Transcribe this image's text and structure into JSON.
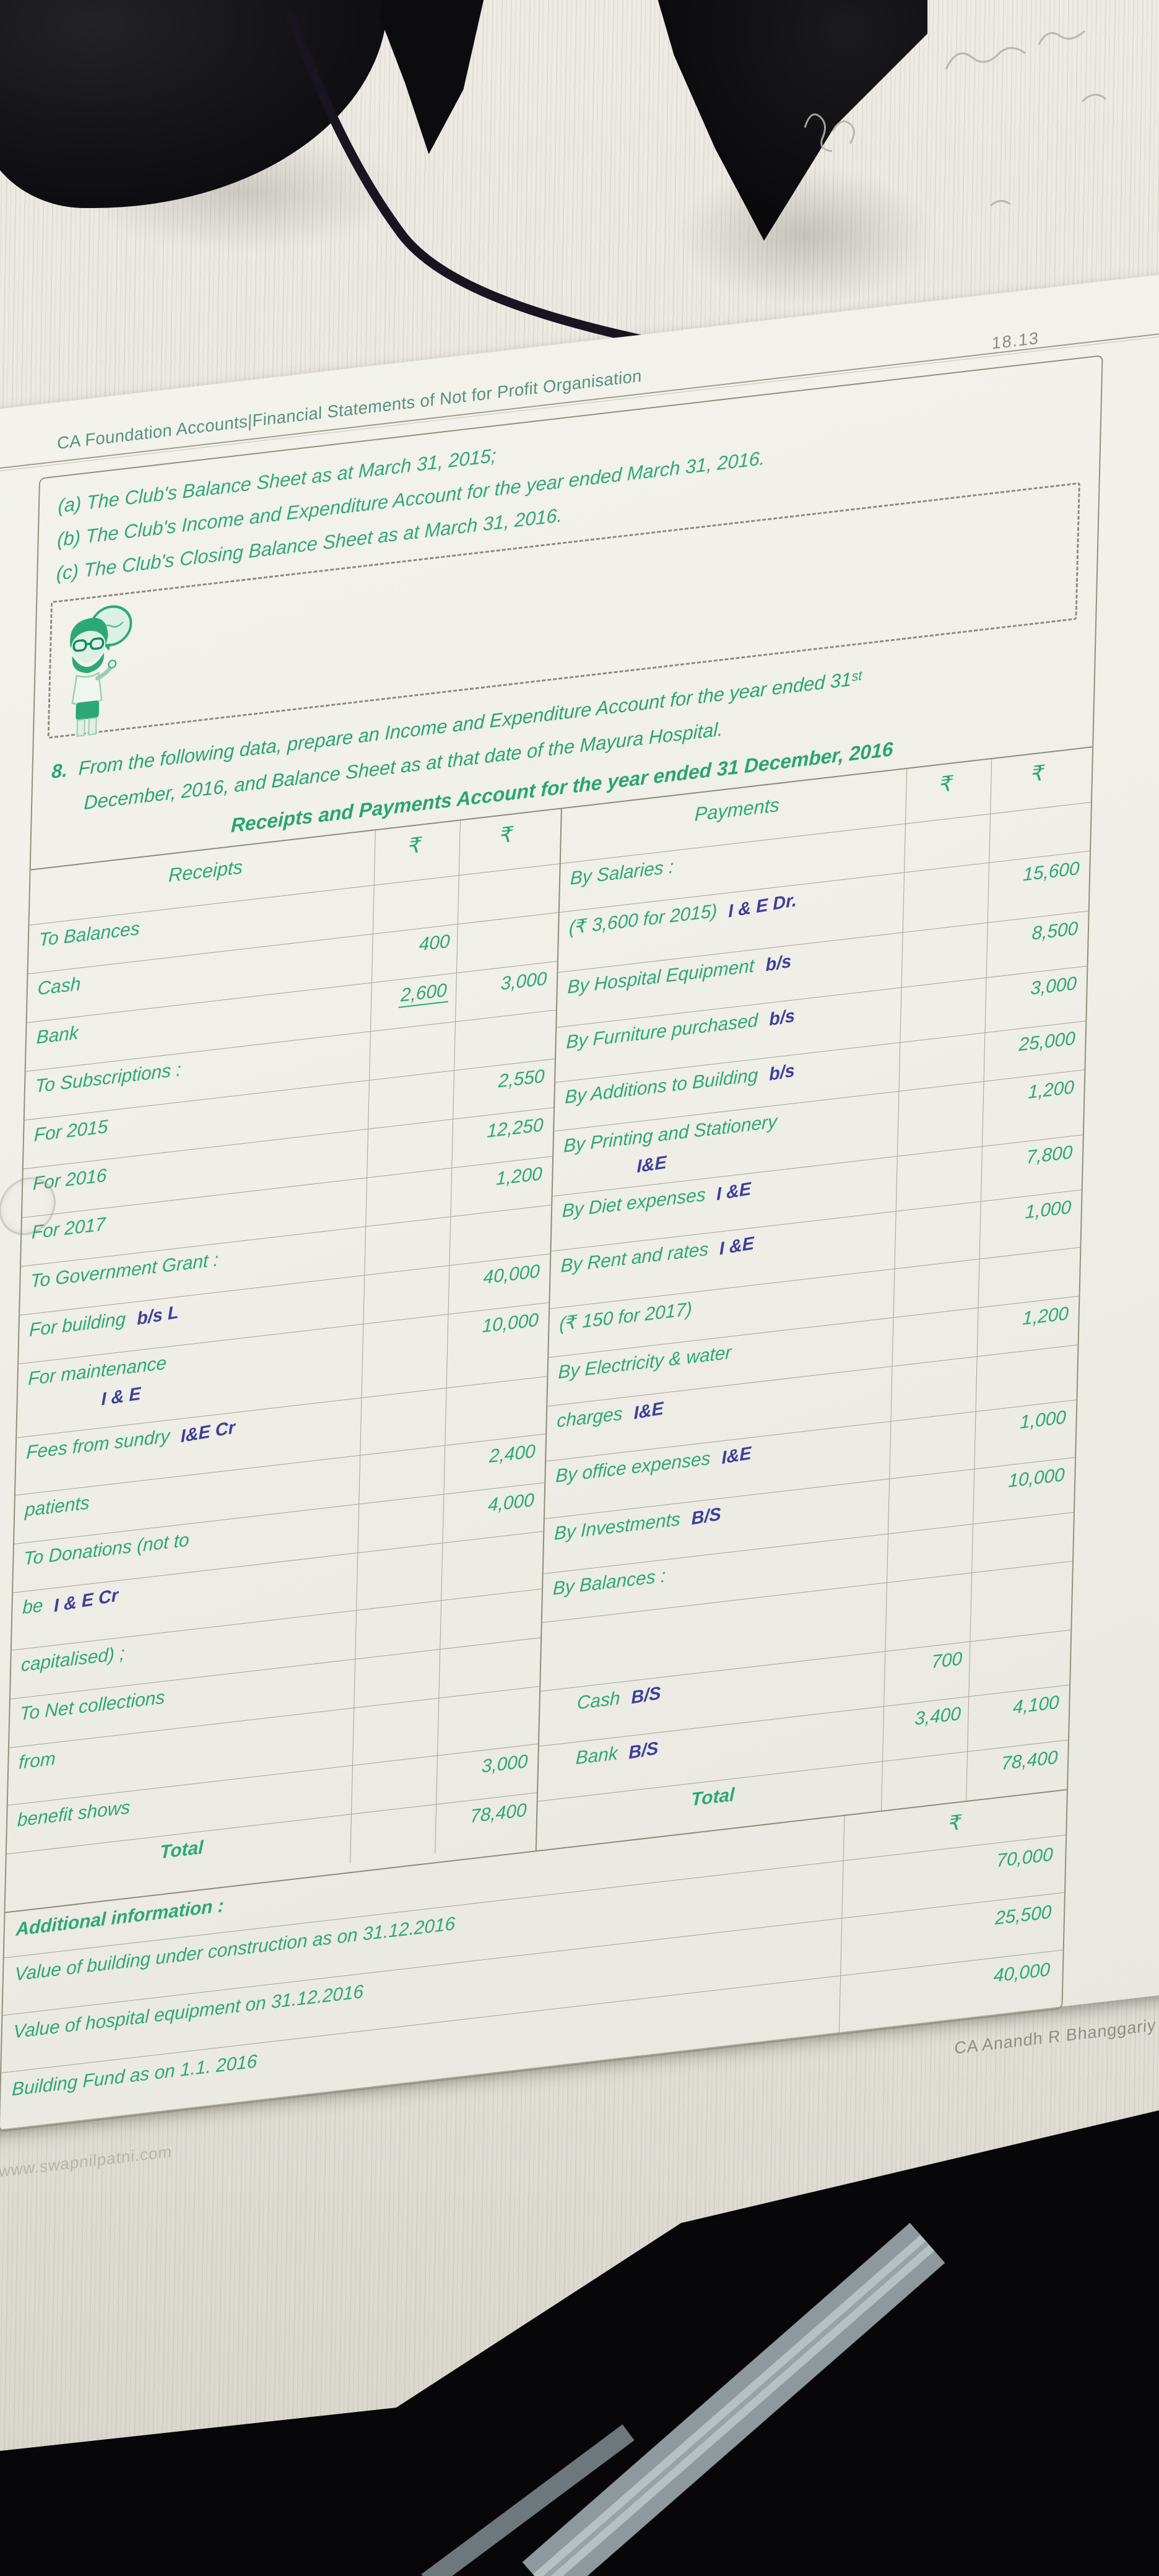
{
  "page_number": "18.13",
  "book_header": "CA Foundation Accounts|Financial Statements of Not for Profit Organisation",
  "requirements": {
    "a": "(a) The Club's Balance Sheet as at March 31, 2015;",
    "b": "(b) The Club's Income and Expenditure Account for the year ended March 31, 2016.",
    "c": "(c) The Club's Closing Balance Sheet as at March 31, 2016."
  },
  "question": {
    "number": "8.",
    "line1": "From the following data, prepare an Income and Expenditure Account for the year ended 31ˢᵗ",
    "line2": "December, 2016, and Balance Sheet as at that date of the Mayura Hospital."
  },
  "statement": {
    "title": "Receipts and Payments Account for the year ended 31 December, 2016",
    "currency_symbol": "₹",
    "left": {
      "header": "Receipts",
      "col1_header": "₹",
      "col2_header": "₹",
      "rows": [
        {
          "label": "To Balances"
        },
        {
          "label": "Cash",
          "c1": "400"
        },
        {
          "label": "Bank",
          "c1": "2,600",
          "c1u": true,
          "c2": "3,000"
        },
        {
          "label": "To Subscriptions :"
        },
        {
          "label": "For 2015",
          "c2": "2,550"
        },
        {
          "label": "For 2016",
          "c2": "12,250"
        },
        {
          "label": "For 2017",
          "c2": "1,200"
        },
        {
          "label": "To Government Grant :"
        },
        {
          "label": "For building",
          "hw": "b/s  L",
          "c2": "40,000"
        },
        {
          "label": "For maintenance",
          "hwBelow": "I & E",
          "c2": "10,000",
          "h": 118
        },
        {
          "label": "Fees from sundry",
          "hw": "I&E Cr",
          "h": 92
        },
        {
          "label": "patients",
          "c2": "2,400"
        },
        {
          "label": "To Donations (not to",
          "c2": "4,000"
        },
        {
          "label": "be",
          "hw": "I & E Cr",
          "h": 92
        },
        {
          "label": "capitalised) ;"
        },
        {
          "label": "To Net collections"
        },
        {
          "label": "from",
          "h": 92
        },
        {
          "label": "benefit shows",
          "c2": "3,000"
        },
        {
          "label": "Total",
          "total": true,
          "c2": "78,400"
        }
      ]
    },
    "right": {
      "header": "Payments",
      "col1_header": "₹",
      "col2_header": "₹",
      "rows": [
        {
          "label": "By Salaries :"
        },
        {
          "label": "(₹ 3,600 for 2015)",
          "hw": "I & E Dr.",
          "c2": "15,600",
          "h": 96
        },
        {
          "label": "By Hospital Equipment",
          "hw": "b/s",
          "c2": "8,500",
          "h": 88
        },
        {
          "label": "By Furniture purchased",
          "hw": "b/s",
          "c2": "3,000",
          "h": 88
        },
        {
          "label": "By Additions to Building",
          "hw": "b/s",
          "c2": "25,000"
        },
        {
          "label": "By Printing and Stationery",
          "hwBelow": "I&E",
          "c2": "1,200",
          "h": 104
        },
        {
          "label": "By Diet expenses",
          "hw": "I &E",
          "c2": "7,800",
          "h": 88
        },
        {
          "label": "By Rent and rates",
          "hw": "I &E",
          "c2": "1,000",
          "h": 92
        },
        {
          "label": "(₹ 150 for 2017)"
        },
        {
          "label": "By Electricity & water",
          "c2": "1,200"
        },
        {
          "label": "charges",
          "hw": "I&E",
          "h": 88
        },
        {
          "label": "By office expenses",
          "hw": "I&E",
          "c2": "1,000",
          "h": 92
        },
        {
          "label": "By Investments",
          "hw": "B/S",
          "c2": "10,000",
          "h": 88
        },
        {
          "label": "By Balances :"
        },
        {
          "label": "",
          "h": 110
        },
        {
          "label": "Cash",
          "hw": "B/S",
          "c1": "700",
          "indent": true,
          "h": 88
        },
        {
          "label": "Bank",
          "hw": "B/S",
          "c1": "3,400",
          "c2": "4,100",
          "indent": true,
          "h": 88
        },
        {
          "label": "Total",
          "total": true,
          "c2": "78,400"
        }
      ]
    }
  },
  "additional_information": {
    "heading": "Additional information :",
    "currency_symbol": "₹",
    "rows": [
      {
        "label": "Value of building under construction as on 31.12.2016",
        "value": "70,000"
      },
      {
        "label": "Value of hospital equipment on 31.12.2016",
        "value": "25,500"
      },
      {
        "label": "Building Fund as on 1.1. 2016",
        "value": "40,000"
      }
    ]
  },
  "footer": {
    "website": "www.swapnilpatni.com",
    "author": "CA  Anandh R Bhanggariy"
  },
  "colors": {
    "print_green": "#2ca878",
    "handwritten_ink_blue": "#3d3f99",
    "grid_line": "#a6a295"
  }
}
